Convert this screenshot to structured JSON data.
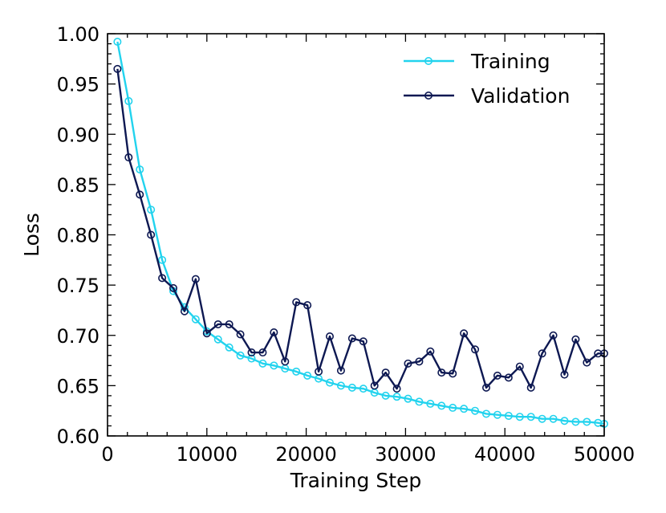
{
  "chart_data": {
    "type": "line",
    "title": "",
    "xlabel": "Training Step",
    "ylabel": "Loss",
    "xlim": [
      0,
      50000
    ],
    "ylim": [
      0.6,
      1.0
    ],
    "x_ticks": [
      0,
      10000,
      20000,
      30000,
      40000,
      50000
    ],
    "x_tick_labels": [
      "0",
      "10000",
      "20000",
      "30000",
      "40000",
      "50000"
    ],
    "y_ticks": [
      0.6,
      0.65,
      0.7,
      0.75,
      0.8,
      0.85,
      0.9,
      0.95,
      1.0
    ],
    "y_tick_labels": [
      "0.60",
      "0.65",
      "0.70",
      "0.75",
      "0.80",
      "0.85",
      "0.90",
      "0.95",
      "1.00"
    ],
    "grid": false,
    "legend_position": "top-right",
    "x": [
      1000,
      2125,
      3250,
      4375,
      5500,
      6625,
      7750,
      8875,
      10000,
      11125,
      12250,
      13375,
      14500,
      15625,
      16750,
      17875,
      19000,
      20125,
      21250,
      22375,
      23500,
      24625,
      25750,
      26875,
      28000,
      29125,
      30250,
      31375,
      32500,
      33625,
      34750,
      35875,
      37000,
      38125,
      39250,
      40375,
      41500,
      42625,
      43750,
      44875,
      46000,
      47125,
      48250,
      49375,
      50000
    ],
    "series": [
      {
        "name": "Training",
        "color": "#22d3ee",
        "values": [
          0.992,
          0.933,
          0.865,
          0.825,
          0.775,
          0.744,
          0.728,
          0.716,
          0.704,
          0.696,
          0.688,
          0.68,
          0.677,
          0.672,
          0.67,
          0.667,
          0.664,
          0.66,
          0.657,
          0.653,
          0.65,
          0.648,
          0.647,
          0.643,
          0.64,
          0.639,
          0.637,
          0.634,
          0.632,
          0.63,
          0.628,
          0.627,
          0.625,
          0.622,
          0.621,
          0.62,
          0.619,
          0.619,
          0.617,
          0.617,
          0.615,
          0.614,
          0.614,
          0.613,
          0.612
        ]
      },
      {
        "name": "Validation",
        "color": "#0d1852",
        "values": [
          0.965,
          0.877,
          0.84,
          0.8,
          0.757,
          0.747,
          0.724,
          0.756,
          0.702,
          0.711,
          0.711,
          0.701,
          0.683,
          0.683,
          0.703,
          0.674,
          0.733,
          0.73,
          0.664,
          0.699,
          0.665,
          0.697,
          0.694,
          0.65,
          0.663,
          0.647,
          0.672,
          0.674,
          0.684,
          0.663,
          0.662,
          0.702,
          0.686,
          0.648,
          0.66,
          0.658,
          0.669,
          0.648,
          0.682,
          0.7,
          0.661,
          0.696,
          0.673,
          0.682,
          0.682
        ]
      }
    ]
  }
}
